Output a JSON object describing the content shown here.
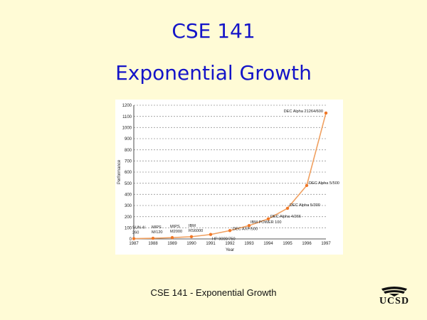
{
  "slide": {
    "title": "CSE 141",
    "subtitle": "Exponential Growth",
    "footer": "CSE 141 - Exponential Growth",
    "logo_text": "UCSD"
  },
  "colors": {
    "background": "#fffbd6",
    "title": "#1414c8",
    "line": "#f0a060",
    "marker": "#f07828"
  },
  "chart_data": {
    "type": "line",
    "title": "",
    "xlabel": "Year",
    "ylabel": "Performance",
    "categories": [
      "1987",
      "1988",
      "1989",
      "1990",
      "1991",
      "1992",
      "1993",
      "1994",
      "1995",
      "1996",
      "1997"
    ],
    "ylim": [
      0,
      1200
    ],
    "yticks": [
      0,
      100,
      200,
      300,
      400,
      500,
      600,
      700,
      800,
      900,
      1000,
      1100,
      1200
    ],
    "grid": true,
    "series": [
      {
        "values": [
          3,
          6,
          12,
          20,
          40,
          75,
          120,
          180,
          275,
          480,
          1130
        ],
        "point_labels": [
          "SUN-4/\n260",
          "MIPS\nM/120",
          "MIPS\nM2000",
          "IBM\nRS6000",
          "HP 9000/750",
          "DEC AXP/500",
          "IBM POWER 100",
          "DEC Alpha 4/266",
          "DEC Alpha 5/300",
          "DEC Alpha 5/500",
          "DEC Alpha 21264/600"
        ]
      }
    ]
  }
}
